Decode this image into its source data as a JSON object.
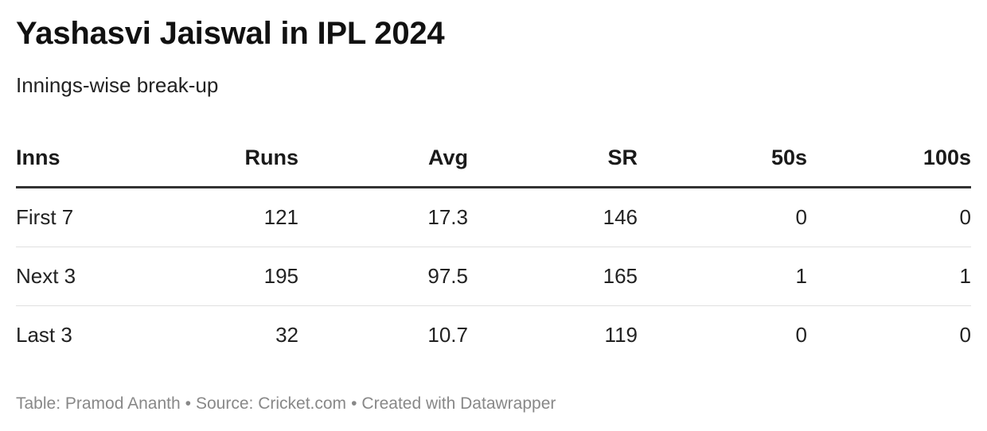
{
  "chart_data": {
    "type": "table",
    "title": "Yashasvi Jaiswal in IPL 2024",
    "subtitle": "Innings-wise break-up",
    "columns": [
      "Inns",
      "Runs",
      "Avg",
      "SR",
      "50s",
      "100s"
    ],
    "rows": [
      [
        "First 7",
        "121",
        "17.3",
        "146",
        "0",
        "0"
      ],
      [
        "Next 3",
        "195",
        "97.5",
        "165",
        "1",
        "1"
      ],
      [
        "Last 3",
        "32",
        "10.7",
        "119",
        "0",
        "0"
      ]
    ]
  },
  "footer": {
    "credit": "Table: Pramod Ananth",
    "separator": "•",
    "source": "Source: Cricket.com",
    "tool": "Created with Datawrapper"
  },
  "colors": {
    "text": "#222222",
    "header_rule": "#333333",
    "row_rule": "#e0e0e0",
    "footer_text": "#888888"
  }
}
